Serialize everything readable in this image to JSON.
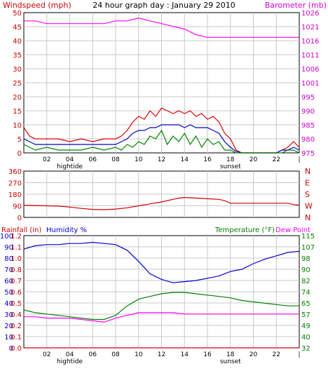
{
  "chart_data": [
    {
      "type": "line",
      "title": "24 hour graph day : January 29 2010",
      "left_label": "Windspeed (mph)",
      "right_label": "Barometer (mb)",
      "x_ticks": [
        "02",
        "04",
        "06",
        "08",
        "10",
        "12",
        "14",
        "16",
        "18",
        "20",
        "22",
        "|"
      ],
      "x_annotations": [
        {
          "x": 4,
          "text": "hightide"
        },
        {
          "x": 18,
          "text": "sunset"
        }
      ],
      "xlim": [
        0,
        24
      ],
      "left_ylim": [
        0,
        50
      ],
      "left_ticks": [
        "0",
        "5",
        "10",
        "15",
        "20",
        "25",
        "30",
        "35",
        "40",
        "45",
        "50"
      ],
      "right_ylim": [
        975,
        1026
      ],
      "right_ticks": [
        "975",
        "980",
        "985",
        "990",
        "995",
        "1001",
        "1006",
        "1011",
        "1016",
        "1021",
        "1026"
      ],
      "grid": true,
      "colors": {
        "gust": "#dd0000",
        "average": "#0000cc",
        "speed": "#008000",
        "barometer": "#ff00ff",
        "axis_left": "#cc0000",
        "axis_right": "#cc00cc",
        "grid": "#c8c8c8"
      },
      "series": [
        {
          "key": "gust",
          "axis": "left",
          "x": [
            0,
            0.5,
            1,
            2,
            3,
            4,
            5,
            6,
            7,
            8,
            8.5,
            9,
            9.5,
            10,
            10.5,
            11,
            11.5,
            12,
            12.5,
            13,
            13.5,
            14,
            14.5,
            15,
            15.5,
            16,
            16.5,
            17,
            17.5,
            18,
            18.5,
            19,
            20,
            21,
            22,
            22.5,
            23,
            23.5,
            24
          ],
          "y": [
            9,
            6,
            5,
            5,
            5,
            4,
            5,
            4,
            5,
            5,
            6,
            8,
            11,
            13,
            12,
            15,
            13,
            16,
            15,
            14,
            15,
            14,
            15,
            13,
            14,
            12,
            13,
            11,
            7,
            5,
            1,
            0,
            0,
            0,
            0,
            1,
            2,
            4,
            2
          ]
        },
        {
          "key": "average",
          "axis": "left",
          "x": [
            0,
            0.5,
            1,
            2,
            3,
            4,
            5,
            6,
            7,
            8,
            8.5,
            9,
            9.5,
            10,
            10.5,
            11,
            11.5,
            12,
            12.5,
            13,
            13.5,
            14,
            14.5,
            15,
            15.5,
            16,
            16.5,
            17,
            17.5,
            18,
            18.5,
            19,
            20,
            21,
            22,
            22.5,
            23,
            23.5,
            24
          ],
          "y": [
            5,
            4,
            3,
            3,
            3,
            3,
            3,
            3,
            3,
            3,
            4,
            5,
            7,
            8,
            8,
            9,
            9,
            10,
            10,
            10,
            10,
            9,
            10,
            9,
            9,
            9,
            8,
            7,
            4,
            2,
            0.5,
            0,
            0,
            0,
            0,
            1,
            1,
            2,
            1
          ]
        },
        {
          "key": "speed",
          "axis": "left",
          "x": [
            0,
            0.5,
            1,
            2,
            3,
            4,
            5,
            6,
            7,
            8,
            8.5,
            9,
            9.5,
            10,
            10.5,
            11,
            11.5,
            12,
            12.5,
            13,
            13.5,
            14,
            14.5,
            15,
            15.5,
            16,
            16.5,
            17,
            17.5,
            18,
            18.5,
            19,
            20,
            21,
            22,
            22.5,
            23,
            23.5,
            24
          ],
          "y": [
            3,
            2,
            1,
            2,
            1,
            1,
            1,
            2,
            1,
            2,
            1,
            3,
            2,
            4,
            3,
            6,
            5,
            8,
            3,
            6,
            4,
            7,
            3,
            6,
            2,
            5,
            3,
            4,
            1,
            1,
            0,
            0,
            0,
            0,
            0,
            0,
            1,
            1,
            0
          ]
        },
        {
          "key": "barometer",
          "axis": "right",
          "x": [
            0,
            1,
            2,
            3,
            4,
            5,
            6,
            7,
            8,
            9,
            10,
            11,
            12,
            13,
            14,
            15,
            16,
            17,
            18,
            19,
            20,
            21,
            22,
            23,
            24
          ],
          "y": [
            1023,
            1023,
            1022,
            1022,
            1022,
            1022,
            1022,
            1022,
            1023,
            1023,
            1024,
            1023,
            1022,
            1021,
            1020,
            1018,
            1017,
            1017,
            1017,
            1017,
            1017,
            1017,
            1017,
            1017,
            1017
          ]
        }
      ]
    },
    {
      "type": "line",
      "left_label": "",
      "right_letters": [
        "N",
        "W",
        "S",
        "E",
        "N"
      ],
      "xlim": [
        0,
        24
      ],
      "left_ylim": [
        0,
        360
      ],
      "left_ticks": [
        "0",
        "90",
        "180",
        "270",
        "360"
      ],
      "grid": true,
      "colors": {
        "direction": "#cc0000",
        "axis_left": "#cc0000",
        "axis_right": "#cc0000"
      },
      "series": [
        {
          "key": "direction",
          "axis": "left",
          "x": [
            0,
            1,
            2,
            3,
            4,
            5,
            6,
            7,
            8,
            9,
            10,
            11,
            12,
            13,
            13.5,
            14,
            15,
            16,
            17,
            17.5,
            18,
            19,
            20,
            21,
            22,
            23,
            23.5,
            24
          ],
          "y": [
            95,
            92,
            90,
            88,
            80,
            70,
            62,
            60,
            65,
            75,
            90,
            105,
            120,
            140,
            150,
            155,
            150,
            145,
            140,
            130,
            110,
            110,
            110,
            110,
            110,
            110,
            100,
            95
          ]
        }
      ]
    },
    {
      "type": "line",
      "labels": {
        "rainfall": "Rainfall (in)",
        "humidity": "Humidity %",
        "temperature": "Temperature (°F)",
        "dewpoint": "Dew Point"
      },
      "x_ticks": [
        "02",
        "04",
        "06",
        "08",
        "10",
        "12",
        "14",
        "16",
        "18",
        "20",
        "22",
        "|"
      ],
      "x_annotations": [
        {
          "x": 4,
          "text": "hightide"
        },
        {
          "x": 18,
          "text": "sunset"
        }
      ],
      "xlim": [
        0,
        24
      ],
      "humidity_ylim": [
        0,
        100
      ],
      "humidity_ticks": [
        "0",
        "10",
        "20",
        "30",
        "40",
        "50",
        "60",
        "70",
        "80",
        "90",
        "100"
      ],
      "rainfall_ylim": [
        0,
        1.2
      ],
      "rainfall_ticks": [
        "0.0",
        "0.1",
        "0.2",
        "0.4",
        "0.5",
        "0.6",
        "0.7",
        "0.8",
        "1.0",
        "1.1",
        "1.2"
      ],
      "temperature_ylim": [
        32,
        115
      ],
      "temperature_ticks": [
        "32",
        "40",
        "49",
        "57",
        "65",
        "74",
        "82",
        "90",
        "98",
        "107",
        "115"
      ],
      "grid": true,
      "colors": {
        "humidity": "#0000cc",
        "temperature": "#008000",
        "dewpoint": "#ff00ff",
        "rainfall": "#cc0000",
        "axis_left_rain": "#cc0000",
        "axis_left_hum": "#0000cc",
        "axis_right": "#008000",
        "dewpoint_label": "#ff00ff"
      },
      "series": [
        {
          "key": "humidity",
          "axis": "humidity",
          "x": [
            0,
            1,
            2,
            3,
            4,
            5,
            6,
            7,
            8,
            9,
            10,
            11,
            12,
            13,
            14,
            15,
            16,
            17,
            18,
            19,
            20,
            21,
            22,
            23,
            24
          ],
          "y": [
            88,
            91,
            92,
            92,
            93,
            93,
            94,
            93,
            92,
            87,
            77,
            66,
            61,
            58,
            59,
            60,
            62,
            64,
            68,
            70,
            75,
            79,
            82,
            85,
            86
          ]
        },
        {
          "key": "temperature",
          "axis": "temperature",
          "x": [
            0,
            1,
            2,
            3,
            4,
            5,
            6,
            7,
            8,
            9,
            10,
            11,
            12,
            13,
            14,
            15,
            16,
            17,
            18,
            19,
            20,
            21,
            22,
            23,
            24
          ],
          "y": [
            60,
            58,
            57,
            56,
            55,
            54,
            53,
            53,
            56,
            63,
            68,
            70,
            72,
            73,
            73,
            72,
            71,
            70,
            69,
            67,
            66,
            65,
            64,
            63,
            63
          ]
        },
        {
          "key": "dewpoint",
          "axis": "temperature",
          "x": [
            0,
            1,
            2,
            3,
            4,
            5,
            6,
            7,
            8,
            9,
            10,
            11,
            12,
            13,
            14,
            15,
            16,
            17,
            18,
            19,
            20,
            21,
            22,
            23,
            24
          ],
          "y": [
            55,
            55,
            54,
            54,
            54,
            53,
            52,
            51,
            54,
            56,
            58,
            58,
            58,
            58,
            57,
            57,
            57,
            57,
            57,
            57,
            57,
            57,
            57,
            57,
            57
          ]
        },
        {
          "key": "rainfall",
          "axis": "rainfall",
          "x": [
            0,
            24
          ],
          "y": [
            0,
            0
          ]
        }
      ]
    }
  ]
}
